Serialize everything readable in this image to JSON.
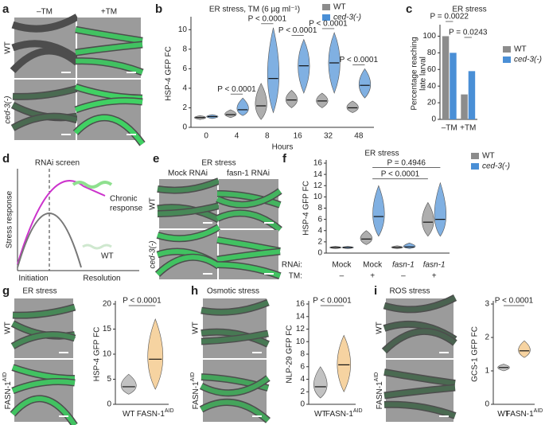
{
  "panel_letters": [
    "a",
    "b",
    "c",
    "d",
    "e",
    "f",
    "g",
    "h",
    "i"
  ],
  "panel_a": {
    "columns": [
      "–TM",
      "+TM"
    ],
    "rows": [
      "WT",
      "ced-3(-)"
    ]
  },
  "panel_d": {
    "title": "RNAi screen",
    "ylabel": "Stress response",
    "chronic": [
      "Chronic",
      "response"
    ],
    "wt": "WT",
    "xlabels": [
      "Initiation",
      "Resolution"
    ]
  },
  "panel_e": {
    "title": "ER stress",
    "columns": [
      "Mock RNAi",
      "fasn-1 RNAi"
    ],
    "rows": [
      "WT",
      "ced-3(-)"
    ]
  },
  "micrograph_rows": {
    "rows": [
      "WT",
      "FASN-1"
    ],
    "superscript": "AID"
  },
  "chart_data": [
    {
      "type": "violin",
      "title": "ER stress, TM (6 µg ml⁻¹)",
      "xlabel": "Hours",
      "ylabel": "HSP-4 GFP FC",
      "categories": [
        "0",
        "4",
        "8",
        "16",
        "32",
        "48"
      ],
      "series": [
        {
          "name": "WT",
          "color": "#8c8c8c",
          "values": [
            1,
            1.3,
            2.2,
            2.8,
            2.7,
            2
          ],
          "ranges": [
            [
              0.8,
              1.2
            ],
            [
              1,
              1.8
            ],
            [
              0.8,
              4.5
            ],
            [
              2,
              3.8
            ],
            [
              2,
              3.5
            ],
            [
              1.5,
              2.7
            ]
          ]
        },
        {
          "name": "ced-3(-)",
          "color": "#4a8fd6",
          "values": [
            1.1,
            1.8,
            5,
            6.3,
            6.6,
            4.3
          ],
          "ranges": [
            [
              0.9,
              1.3
            ],
            [
              1.2,
              3
            ],
            [
              1.5,
              10.2
            ],
            [
              3.5,
              9
            ],
            [
              3.5,
              9.7
            ],
            [
              3,
              6
            ]
          ]
        }
      ],
      "ylim": [
        0,
        11
      ],
      "yticks": [
        0,
        2,
        4,
        6,
        8,
        10
      ],
      "grid": false,
      "annotations": [
        "P < 0.0001",
        "P < 0.0001",
        "P < 0.0001",
        "P < 0.0001",
        "P < 0.0001"
      ]
    },
    {
      "type": "bar",
      "title": "ER stress",
      "ylabel": [
        "Percentage reaching",
        "late larval"
      ],
      "categories": [
        "–TM",
        "+TM"
      ],
      "series": [
        {
          "name": "WT",
          "color": "#8c8c8c",
          "values": [
            100,
            30
          ]
        },
        {
          "name": "ced-3(-)",
          "color": "#4a8fd6",
          "values": [
            80,
            58
          ]
        }
      ],
      "ylim": [
        0,
        110
      ],
      "yticks": [
        0,
        20,
        40,
        60,
        80,
        100
      ],
      "grid": false,
      "annotations": [
        "P = 0.0022",
        "P = 0.0243"
      ]
    },
    {
      "type": "violin",
      "title": "ER stress",
      "ylabel": "HSP-4 GFP FC",
      "row_labels": [
        "RNAi:",
        "TM:"
      ],
      "categories": [
        "Mock",
        "Mock",
        "fasn-1",
        "fasn-1"
      ],
      "tm": [
        "–",
        "+",
        "–",
        "+"
      ],
      "series": [
        {
          "name": "WT",
          "color": "#8c8c8c",
          "values": [
            1,
            2.5,
            1,
            5.5
          ],
          "ranges": [
            [
              0.8,
              1.2
            ],
            [
              1.5,
              4
            ],
            [
              0.8,
              1.3
            ],
            [
              3,
              9
            ]
          ]
        },
        {
          "name": "ced-3(-)",
          "color": "#4a8fd6",
          "values": [
            1,
            6.5,
            1.1,
            6
          ],
          "ranges": [
            [
              0.8,
              1.2
            ],
            [
              3,
              12
            ],
            [
              0.8,
              1.8
            ],
            [
              3,
              12.5
            ]
          ]
        }
      ],
      "ylim": [
        0,
        16
      ],
      "yticks": [
        0,
        2,
        4,
        6,
        8,
        10,
        12,
        14,
        16
      ],
      "grid": false,
      "annotations": [
        "P = 0.4946",
        "P < 0.0001"
      ]
    },
    {
      "type": "violin",
      "title": "ER stress",
      "ylabel": "HSP-4 GFP FC",
      "categories": [
        "WT",
        "FASN-1"
      ],
      "superscripts": [
        null,
        "AID"
      ],
      "values": [
        3.5,
        9
      ],
      "ranges": [
        [
          2,
          6
        ],
        [
          3,
          17
        ]
      ],
      "colors": [
        "#a8a8a8",
        "#f2c179"
      ],
      "ylim": [
        0,
        20
      ],
      "yticks": [
        0,
        5,
        10,
        15,
        20
      ],
      "grid": false,
      "annotations": [
        "P < 0.0001"
      ]
    },
    {
      "type": "violin",
      "title": "Osmotic stress",
      "ylabel": "NLP-29 GFP FC",
      "categories": [
        "WT",
        "FASN-1"
      ],
      "superscripts": [
        null,
        "AID"
      ],
      "values": [
        2.8,
        6.3
      ],
      "ranges": [
        [
          1,
          6
        ],
        [
          2,
          11
        ]
      ],
      "colors": [
        "#a8a8a8",
        "#f2c179"
      ],
      "ylim": [
        0,
        16
      ],
      "yticks": [
        0,
        2,
        4,
        6,
        8,
        10,
        12,
        14,
        16
      ],
      "grid": false,
      "annotations": [
        "P < 0.0001"
      ]
    },
    {
      "type": "violin",
      "title": "ROS stress",
      "ylabel": "GCS-1 GFP FC",
      "categories": [
        "WT",
        "FASN-1"
      ],
      "superscripts": [
        null,
        "AID"
      ],
      "values": [
        1.1,
        1.6
      ],
      "ranges": [
        [
          1,
          1.2
        ],
        [
          1.4,
          1.9
        ]
      ],
      "colors": [
        "#a8a8a8",
        "#f2c179"
      ],
      "ylim": [
        0,
        3
      ],
      "yticks": [
        0,
        1,
        2,
        3
      ],
      "grid": false,
      "annotations": [
        "P < 0.0001"
      ]
    }
  ]
}
